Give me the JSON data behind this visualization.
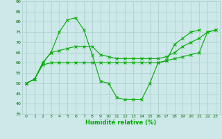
{
  "title": "",
  "xlabel": "Humidité relative (%)",
  "ylabel": "",
  "background_color": "#cce8e8",
  "grid_color": "#aacccc",
  "line_color": "#00aa00",
  "xlim": [
    -0.5,
    23.5
  ],
  "ylim": [
    35,
    90
  ],
  "yticks": [
    35,
    40,
    45,
    50,
    55,
    60,
    65,
    70,
    75,
    80,
    85,
    90
  ],
  "xticks": [
    0,
    1,
    2,
    3,
    4,
    5,
    6,
    7,
    8,
    9,
    10,
    11,
    12,
    13,
    14,
    15,
    16,
    17,
    18,
    19,
    20,
    21,
    22,
    23
  ],
  "series": [
    {
      "x": [
        0,
        1,
        2,
        3,
        4,
        5,
        6,
        7,
        8,
        9,
        10,
        11,
        12,
        13,
        14,
        15,
        16,
        17,
        18,
        19,
        20,
        21,
        22,
        23
      ],
      "y": [
        50,
        52,
        59,
        60,
        60,
        60,
        60,
        60,
        60,
        60,
        60,
        60,
        60,
        60,
        60,
        60,
        60,
        61,
        62,
        63,
        64,
        65,
        75,
        76
      ]
    },
    {
      "x": [
        0,
        1,
        2,
        3,
        4,
        5,
        6,
        7,
        8,
        9,
        10,
        11,
        12,
        13,
        14,
        15,
        16,
        17,
        18,
        19,
        20,
        21,
        22,
        23
      ],
      "y": [
        50,
        52,
        60,
        65,
        66,
        67,
        68,
        68,
        68,
        64,
        63,
        62,
        62,
        62,
        62,
        62,
        62,
        63,
        65,
        68,
        70,
        72,
        75,
        76
      ]
    },
    {
      "x": [
        0,
        1,
        2,
        3,
        4,
        5,
        6,
        7,
        8,
        9,
        10,
        11,
        12,
        13,
        14,
        15,
        16,
        17,
        18,
        19,
        20,
        21,
        22,
        23
      ],
      "y": [
        50,
        52,
        60,
        65,
        75,
        81,
        82,
        76,
        64,
        51,
        50,
        43,
        42,
        42,
        42,
        50,
        60,
        61,
        69,
        72,
        75,
        76,
        null,
        null
      ]
    }
  ]
}
